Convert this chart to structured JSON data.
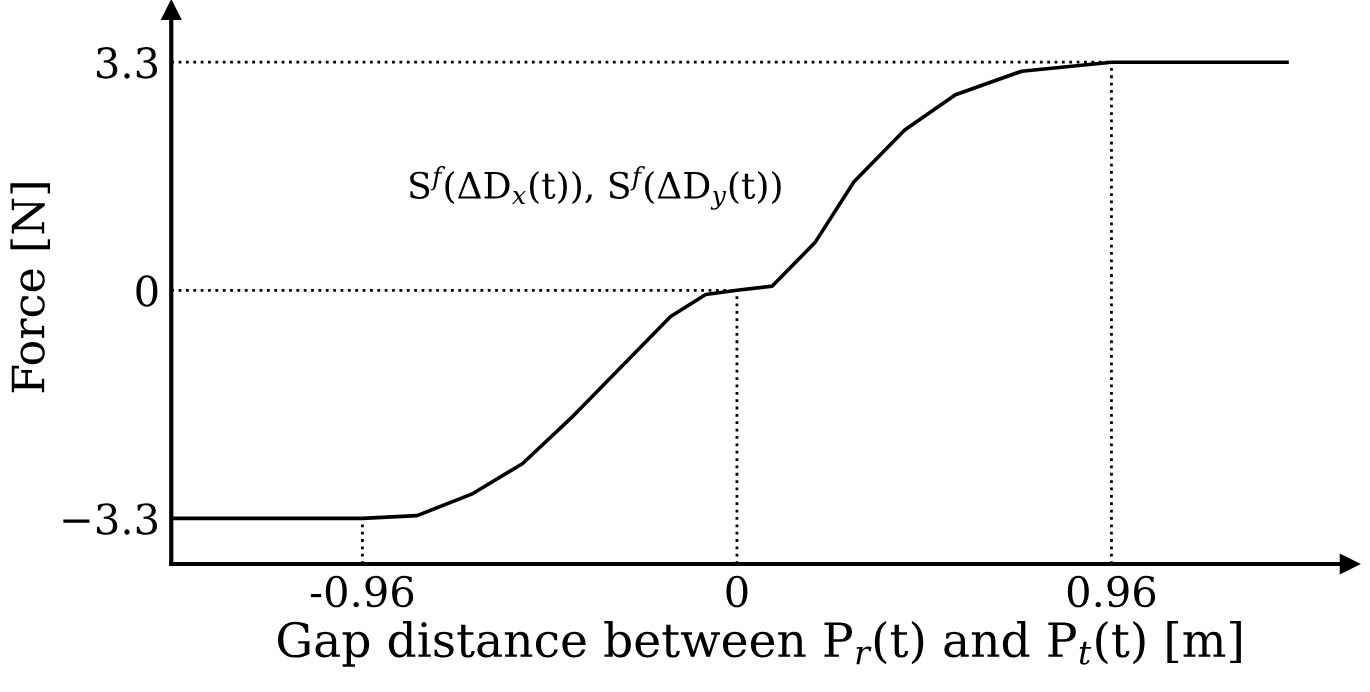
{
  "chart_data": {
    "type": "line",
    "xlabel": "Gap distance between P$_{r}$(t) and P$_{t}$(t) [m]",
    "ylabel": "Force [N]",
    "annotations": [
      "S$^{f}$(ΔD$_{x}$(t)), S$^{f}$(ΔD$_{y}$(t))"
    ],
    "series": [
      {
        "color": "#000000",
        "x": [
          -1.45,
          -0.96,
          -0.82,
          -0.68,
          -0.55,
          -0.42,
          -0.29,
          -0.17,
          -0.08,
          0,
          0.09,
          0.2,
          0.3,
          0.43,
          0.56,
          0.73,
          0.96,
          1.41
        ],
        "values": [
          -3.3,
          -3.3,
          -3.26,
          -2.95,
          -2.51,
          -1.82,
          -1.07,
          -0.38,
          -0.06,
          0,
          0.06,
          0.69,
          1.57,
          2.32,
          2.83,
          3.17,
          3.3,
          3.3
        ]
      }
    ],
    "xlim": [
      -1.45,
      1.57
    ],
    "ylim": [
      -3.96,
      4.05
    ],
    "xticks": [
      {
        "value": -0.96,
        "label": "-0.96"
      },
      0,
      0.96
    ],
    "yticks": [
      {
        "value": -3.3,
        "label": "−3.3"
      },
      0,
      3.3
    ],
    "ref_lines": [
      {
        "axis": "x",
        "value": -0.96,
        "line_style": "dotted"
      },
      {
        "axis": "x",
        "value": 0,
        "line_style": "dotted"
      },
      {
        "axis": "x",
        "value": 0.96,
        "line_style": "dotted"
      },
      {
        "axis": "y",
        "value": 0,
        "line_style": "dotted"
      },
      {
        "axis": "y",
        "value": 3.3,
        "line_style": "dotted"
      }
    ],
    "grid": false,
    "legend": false,
    "marker": "none",
    "line_style": "solid"
  }
}
